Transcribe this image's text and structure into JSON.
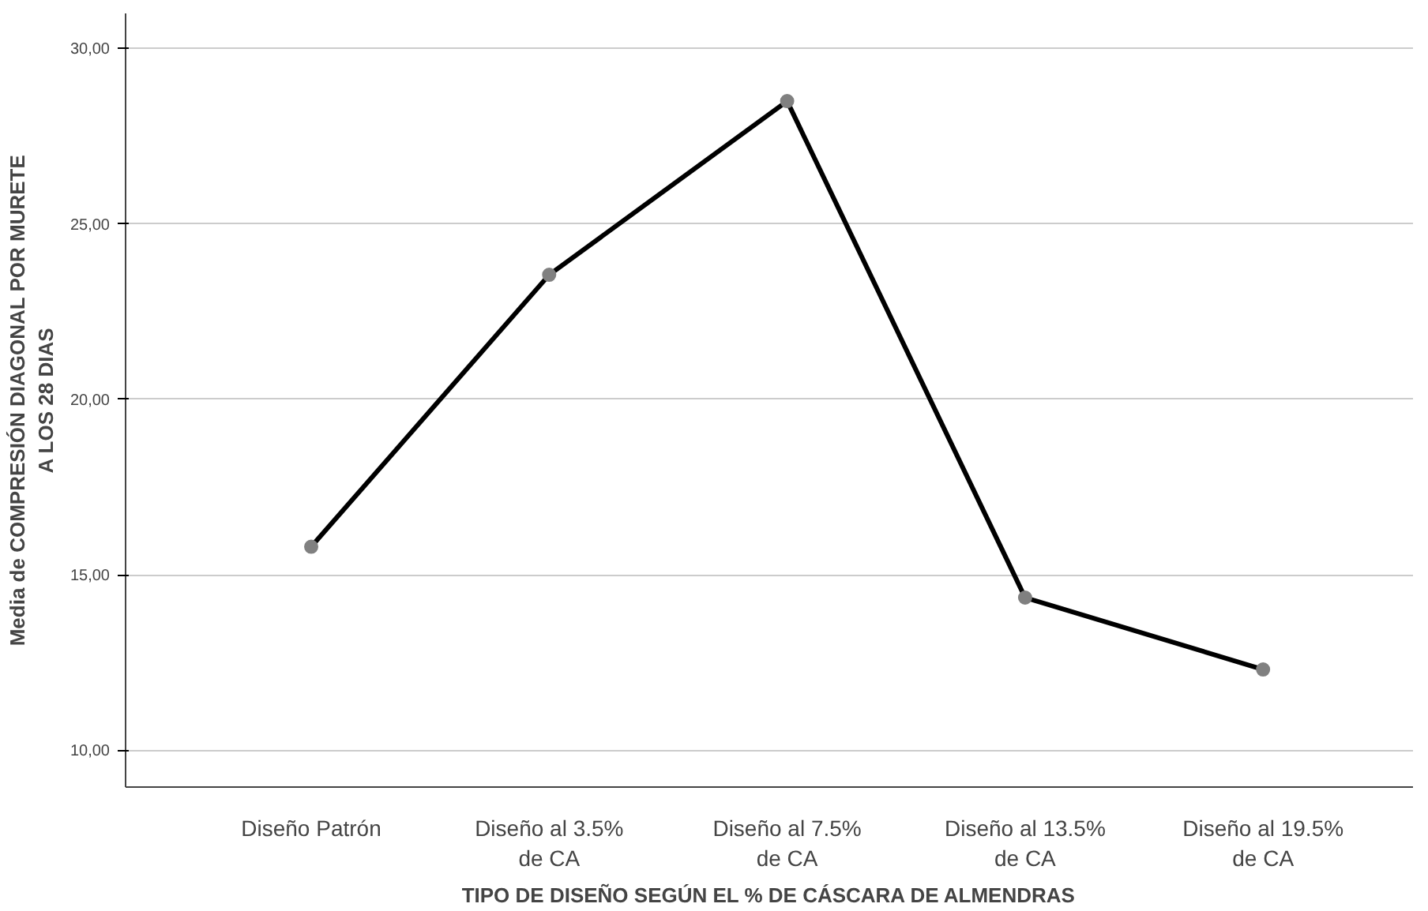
{
  "chart_data": {
    "type": "line",
    "xlabel": "TIPO DE DISEÑO SEGÚN EL % DE CÁSCARA DE ALMENDRAS",
    "ylabel": "Media de COMPRESIÓN DIAGONAL POR MURETE\nA LOS 28 DIAS",
    "categories": [
      "Diseño Patrón",
      "Diseño al 3.5%\nde CA",
      "Diseño al 7.5%\nde CA",
      "Diseño al 13.5%\nde CA",
      "Diseño al 19.5%\nde CA"
    ],
    "series": [
      {
        "color": "#000000",
        "values": [
          15.8,
          23.55,
          28.5,
          14.35,
          12.3
        ]
      }
    ],
    "ylim": [
      8.95,
      31.0
    ],
    "yticks": [
      {
        "value": 10,
        "label": "10,00"
      },
      {
        "value": 15,
        "label": "15,00"
      },
      {
        "value": 20,
        "label": "20,00"
      },
      {
        "value": 25,
        "label": "25,00"
      },
      {
        "value": 30,
        "label": "30,00"
      }
    ],
    "grid": "y",
    "marker": "circle",
    "line_style": "solid"
  }
}
